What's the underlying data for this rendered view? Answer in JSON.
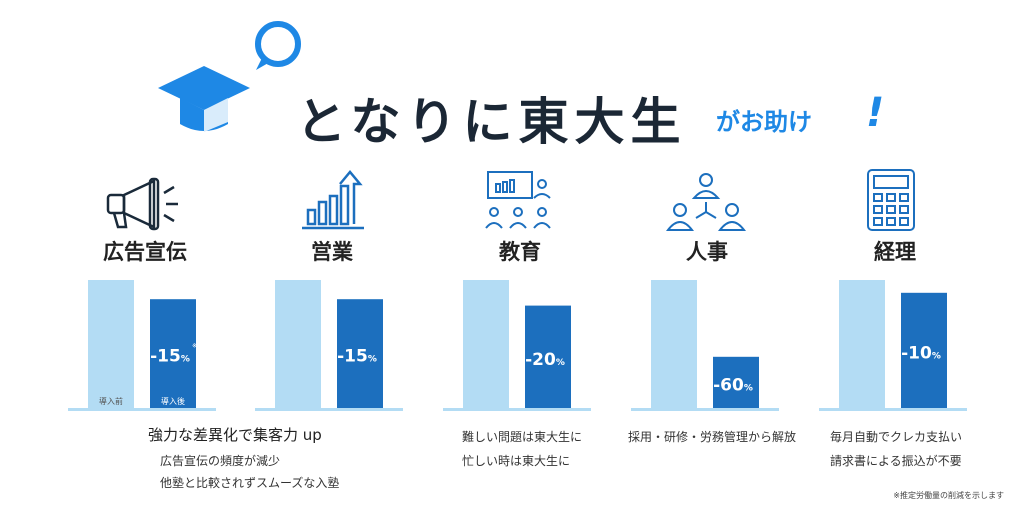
{
  "header": {
    "title": "となりに東大生",
    "tag": "がお助け",
    "excl": "!"
  },
  "colors": {
    "before": "#b3dcf4",
    "after": "#1c6fbe",
    "baseline": "#b3dcf4",
    "accent": "#1e88e5"
  },
  "categories": [
    {
      "name": "広告宣伝",
      "icon": "megaphone-icon",
      "label": "-15",
      "unit": "%",
      "mark": "※"
    },
    {
      "name": "営業",
      "icon": "growth-chart-icon",
      "label": "-15",
      "unit": "%"
    },
    {
      "name": "教育",
      "icon": "teaching-icon",
      "label": "-20",
      "unit": "%"
    },
    {
      "name": "人事",
      "icon": "people-network-icon",
      "label": "-60",
      "unit": "%"
    },
    {
      "name": "経理",
      "icon": "calculator-icon",
      "label": "-10",
      "unit": "%"
    }
  ],
  "bar_labels": {
    "before": "導入前",
    "after": "導入後"
  },
  "chart_data": {
    "type": "bar",
    "categories": [
      "広告宣伝",
      "営業",
      "教育",
      "人事",
      "経理"
    ],
    "series": [
      {
        "name": "導入前",
        "values": [
          100,
          100,
          100,
          100,
          100
        ]
      },
      {
        "name": "導入後",
        "values": [
          85,
          85,
          80,
          40,
          90
        ]
      }
    ],
    "data_labels": [
      "-15%",
      "-15%",
      "-20%",
      "-60%",
      "-10%"
    ],
    "ylim": [
      0,
      100
    ]
  },
  "notes": {
    "ad": {
      "lead": "強力な差異化で集客力 up",
      "lines": [
        "広告宣伝の頻度が減少",
        "他塾と比較されずスムーズな入塾"
      ]
    },
    "edu": {
      "lines": [
        "難しい問題は東大生に",
        "忙しい時は東大生に"
      ]
    },
    "hr": {
      "lines": [
        "採用・研修・労務管理から解放"
      ]
    },
    "acc": {
      "lines": [
        "毎月自動でクレカ支払い",
        "請求書による振込が不要"
      ]
    }
  },
  "footnote": "※推定労働量の削減を示します"
}
